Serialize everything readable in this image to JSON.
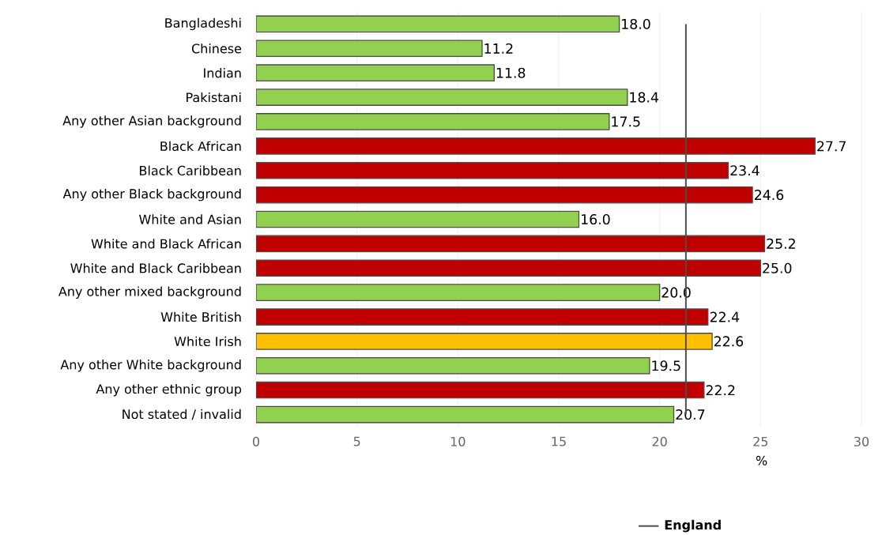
{
  "chart_data": {
    "type": "bar",
    "orientation": "horizontal",
    "xlabel": "%",
    "categories": [
      "Bangladeshi",
      "Chinese",
      "Indian",
      "Pakistani",
      "Any other Asian background",
      "Black African",
      "Black Caribbean",
      "Any other Black background",
      "White and Asian",
      "White and Black African",
      "White and Black Caribbean",
      "Any other mixed background",
      "White British",
      "White Irish",
      "Any other White background",
      "Any other ethnic group",
      "Not stated / invalid"
    ],
    "series": [
      {
        "values": [
          18.0,
          11.2,
          11.8,
          18.4,
          17.5,
          27.7,
          23.4,
          24.6,
          16.0,
          25.2,
          25.0,
          20.0,
          22.4,
          22.6,
          19.5,
          22.2,
          20.7
        ],
        "value_labels": [
          "18.0",
          "11.2",
          "11.8",
          "18.4",
          "17.5",
          "27.7",
          "23.4",
          "24.6",
          "16.0",
          "25.2",
          "25.0",
          "20.0",
          "22.4",
          "22.6",
          "19.5",
          "22.2",
          "20.7"
        ],
        "colors": [
          "#92d050",
          "#92d050",
          "#92d050",
          "#92d050",
          "#92d050",
          "#c00000",
          "#c00000",
          "#c00000",
          "#92d050",
          "#c00000",
          "#c00000",
          "#92d050",
          "#c00000",
          "#ffc000",
          "#92d050",
          "#c00000",
          "#92d050"
        ]
      },
      {
        "type": "line",
        "name": "England",
        "color": "#4d4d4d",
        "values": [
          21.3,
          21.3,
          21.3,
          21.3,
          21.3,
          21.3,
          21.3,
          21.3,
          21.3,
          21.3,
          21.3,
          21.3,
          21.3,
          21.3,
          21.3,
          21.3,
          21.3
        ]
      }
    ],
    "xlim": [
      0,
      30
    ],
    "xticks": [
      0,
      5,
      10,
      15,
      20,
      25,
      30
    ],
    "grid": "x",
    "legend": "bottom"
  }
}
